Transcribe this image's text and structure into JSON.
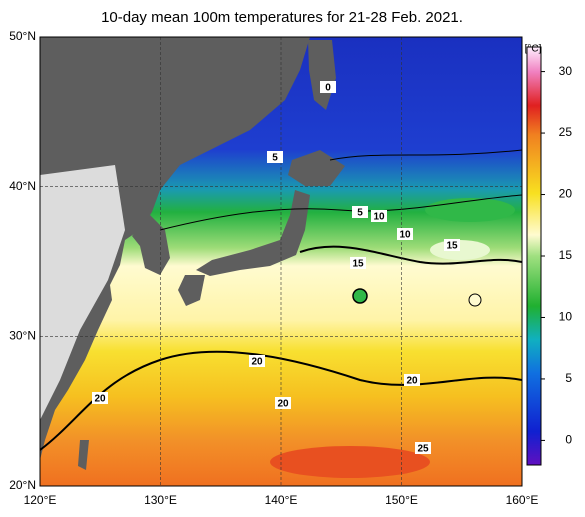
{
  "title": "10-day mean 100m temperatures for 21-28 Feb. 2021.",
  "map": {
    "lonlim": [
      120,
      160
    ],
    "latlim": [
      20,
      50
    ],
    "lonticks": [
      {
        "value": 120,
        "label": "120°E"
      },
      {
        "value": 130,
        "label": "130°E"
      },
      {
        "value": 140,
        "label": "140°E"
      },
      {
        "value": 150,
        "label": "150°E"
      },
      {
        "value": 160,
        "label": "160°E"
      }
    ],
    "latticks": [
      {
        "value": 20,
        "label": "20°N"
      },
      {
        "value": 30,
        "label": "30°N"
      },
      {
        "value": 40,
        "label": "40°N"
      },
      {
        "value": 50,
        "label": "50°N"
      }
    ]
  },
  "colorbar": {
    "unit": "[°C]",
    "lim": [
      -2,
      32
    ],
    "ticks": [
      0,
      5,
      10,
      15,
      20,
      25,
      30
    ]
  },
  "contour_labels": [
    0,
    5,
    5,
    10,
    10,
    15,
    15,
    20,
    20,
    20,
    20,
    25
  ]
}
